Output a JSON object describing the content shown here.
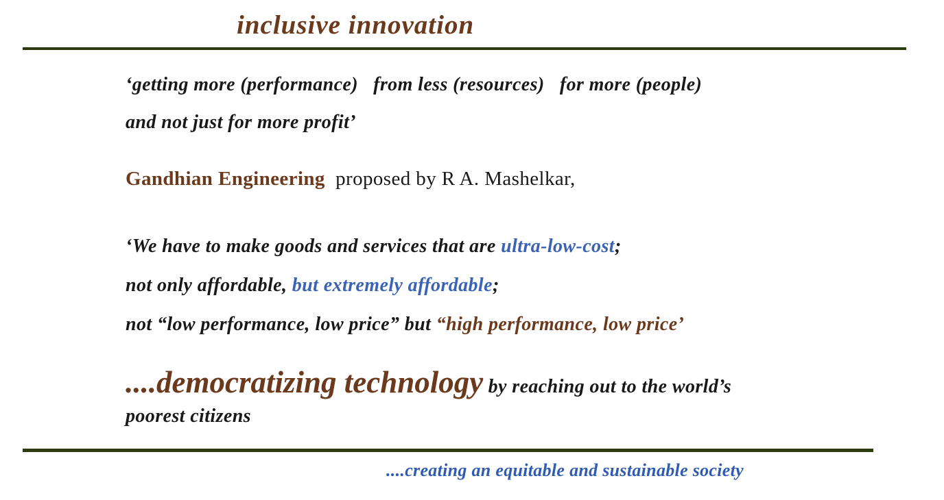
{
  "colors": {
    "brown": "#6b3a1c",
    "green": "#2d3b10",
    "blue": "#3a63b5",
    "footerblue": "#2f5cb2",
    "black": "#191919"
  },
  "title": "inclusive innovation",
  "quote1": {
    "line1": "‘getting more (performance)   from less (resources)   for more (people)",
    "line2": "and not just for more profit’"
  },
  "gandhian": {
    "term": "Gandhian Engineering",
    "rest": "  proposed by R A. Mashelkar,"
  },
  "quote2": {
    "line1_black": "‘We have to make goods and services that are ",
    "line1_blue": "ultra-low-cost",
    "line1_tail": ";",
    "line2_black": "not only affordable, ",
    "line2_blue": "but extremely affordable",
    "line2_tail": ";",
    "line3_black": "not “low performance, low price” but ",
    "line3_brown": "“high performance, low price’"
  },
  "democratizing": {
    "big": "....democratizing technology",
    "rest": " by reaching out to the world’s",
    "line2": "poorest citizens"
  },
  "footer": "....creating an equitable and sustainable society"
}
